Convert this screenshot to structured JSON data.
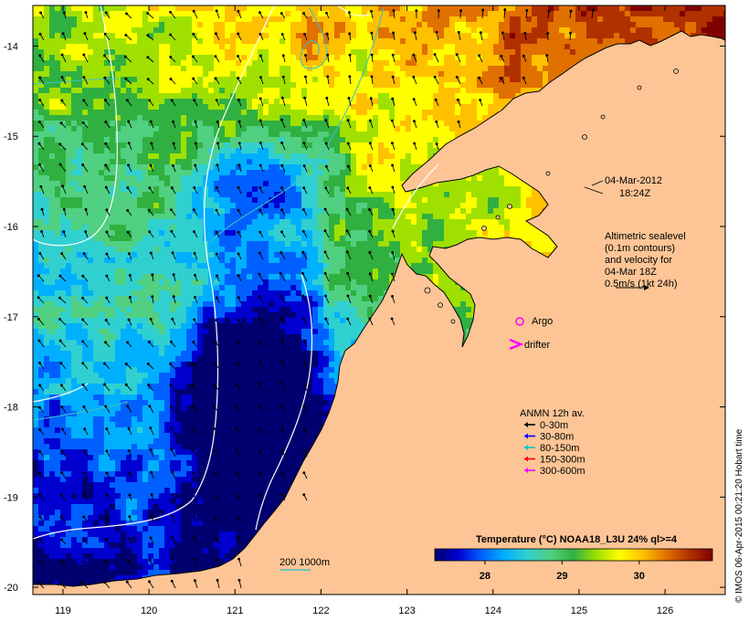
{
  "map": {
    "lon_ticks": [
      "119",
      "120",
      "121",
      "122",
      "123",
      "124",
      "125",
      "126"
    ],
    "lat_ticks": [
      "-14",
      "-15",
      "-16",
      "-17",
      "-18",
      "-19",
      "-20"
    ],
    "lon_range": [
      118.65,
      126.7
    ],
    "lat_range": [
      -20.08,
      -13.55
    ]
  },
  "annotations": {
    "date_line1": "04-Mar-2012",
    "date_line2": "18:24Z",
    "alt_line1": "Altimetric sealevel",
    "alt_line2": "(0.1m contours)",
    "alt_line3": "and velocity for",
    "alt_line4": "04-Mar 18Z",
    "alt_line5": "0.5m/s (1kt 24h)",
    "argo_label": "Argo",
    "drifter_label": "drifter",
    "isobath_label": "200  1000m"
  },
  "anmn_legend": {
    "title": "ANMN 12h av.",
    "items": [
      {
        "label": "0-30m",
        "color": "#000000"
      },
      {
        "label": "30-80m",
        "color": "#0000ff"
      },
      {
        "label": "80-150m",
        "color": "#00c8c8"
      },
      {
        "label": "150-300m",
        "color": "#ff0000"
      },
      {
        "label": "300-600m",
        "color": "#ff00ff"
      }
    ]
  },
  "colorbar": {
    "title": "Temperature (°C) NOAA18_L3U 24% ql>=4",
    "ticks": [
      "28",
      "29",
      "30"
    ],
    "tick_values": [
      28,
      29,
      30
    ],
    "range": [
      27.35,
      30.95
    ],
    "colors": [
      "#000070",
      "#0000d0",
      "#0060ff",
      "#00b0ff",
      "#30d0d0",
      "#50d080",
      "#30b040",
      "#a0e000",
      "#ffff00",
      "#ffc000",
      "#e07000",
      "#b03000",
      "#800000"
    ]
  },
  "credit": "© IMOS 06-Apr-2015 00:21:20 Hobart time",
  "colors": {
    "land": "#fdc596",
    "frame": "#000000",
    "sealevel_contour": "#ffffff",
    "isobath_200": "#40c0c0",
    "argo": "#ff00ff"
  }
}
